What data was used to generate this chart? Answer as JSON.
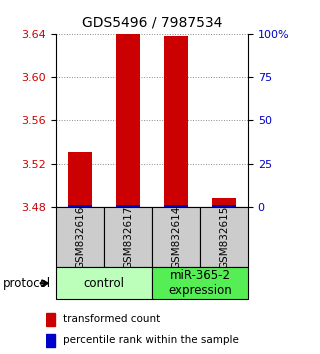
{
  "title": "GDS5496 / 7987534",
  "samples": [
    "GSM832616",
    "GSM832617",
    "GSM832614",
    "GSM832615"
  ],
  "red_values": [
    3.531,
    3.64,
    3.638,
    3.488
  ],
  "blue_values": [
    3.481,
    3.481,
    3.481,
    3.481
  ],
  "ylim_left": [
    3.48,
    3.64
  ],
  "yticks_left": [
    3.48,
    3.52,
    3.56,
    3.6,
    3.64
  ],
  "yticks_right": [
    0,
    25,
    50,
    75,
    100
  ],
  "ylim_right": [
    0,
    100
  ],
  "groups": [
    {
      "label": "control",
      "color": "#bbffbb"
    },
    {
      "label": "miR-365-2\nexpression",
      "color": "#55ee55"
    }
  ],
  "bar_width": 0.5,
  "red_color": "#cc0000",
  "blue_color": "#0000cc",
  "title_fontsize": 10,
  "tick_fontsize": 8,
  "sample_label_fontsize": 7.5,
  "legend_fontsize": 7.5,
  "group_label_fontsize": 8.5,
  "protocol_fontsize": 8.5,
  "background_color": "#ffffff",
  "plot_bg": "#ffffff",
  "grid_color": "#888888",
  "label_bg": "#cccccc"
}
